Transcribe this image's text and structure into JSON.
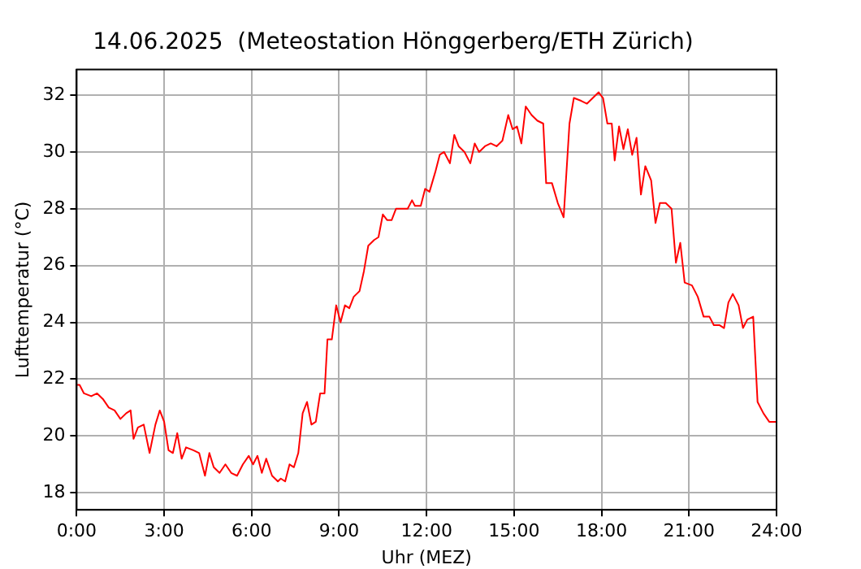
{
  "chart_data": {
    "type": "line",
    "title": "14.06.2025  (Meteostation Hönggerberg/ETH Zürich)",
    "xlabel": "Uhr (MEZ)",
    "ylabel": "Lufttemperatur (°C)",
    "x": [
      0,
      0.1,
      0.25,
      0.5,
      0.7,
      0.9,
      1.1,
      1.3,
      1.5,
      1.7,
      1.85,
      1.95,
      2.1,
      2.3,
      2.5,
      2.7,
      2.85,
      3.0,
      3.15,
      3.3,
      3.45,
      3.6,
      3.75,
      4.0,
      4.2,
      4.4,
      4.55,
      4.7,
      4.9,
      5.1,
      5.3,
      5.5,
      5.7,
      5.9,
      6.05,
      6.2,
      6.35,
      6.5,
      6.7,
      6.9,
      7.0,
      7.15,
      7.3,
      7.45,
      7.6,
      7.75,
      7.9,
      8.05,
      8.2,
      8.35,
      8.5,
      8.6,
      8.75,
      8.9,
      9.05,
      9.2,
      9.35,
      9.5,
      9.7,
      9.85,
      10.0,
      10.2,
      10.35,
      10.5,
      10.65,
      10.8,
      10.95,
      11.1,
      11.35,
      11.5,
      11.6,
      11.8,
      11.95,
      12.1,
      12.3,
      12.45,
      12.6,
      12.8,
      12.95,
      13.1,
      13.3,
      13.5,
      13.65,
      13.8,
      14.0,
      14.2,
      14.4,
      14.6,
      14.8,
      14.95,
      15.1,
      15.25,
      15.4,
      15.6,
      15.8,
      16.0,
      16.1,
      16.3,
      16.5,
      16.7,
      16.9,
      17.05,
      17.3,
      17.5,
      17.7,
      17.9,
      18.05,
      18.2,
      18.35,
      18.45,
      18.6,
      18.75,
      18.9,
      19.05,
      19.2,
      19.35,
      19.5,
      19.7,
      19.85,
      20.0,
      20.2,
      20.4,
      20.55,
      20.7,
      20.85,
      21.1,
      21.3,
      21.5,
      21.7,
      21.85,
      22.05,
      22.2,
      22.35,
      22.5,
      22.7,
      22.85,
      23.0,
      23.2,
      23.35,
      23.55,
      23.75,
      24.0
    ],
    "series": [
      {
        "color": "#ff0000",
        "values": [
          21.8,
          21.8,
          21.5,
          21.4,
          21.5,
          21.3,
          21.0,
          20.9,
          20.6,
          20.8,
          20.9,
          19.9,
          20.3,
          20.4,
          19.4,
          20.4,
          20.9,
          20.5,
          19.5,
          19.4,
          20.1,
          19.2,
          19.6,
          19.5,
          19.4,
          18.6,
          19.4,
          18.9,
          18.7,
          19.0,
          18.7,
          18.6,
          19.0,
          19.3,
          19.0,
          19.3,
          18.7,
          19.2,
          18.6,
          18.4,
          18.5,
          18.4,
          19.0,
          18.9,
          19.4,
          20.8,
          21.2,
          20.4,
          20.5,
          21.5,
          21.5,
          23.4,
          23.4,
          24.6,
          24.0,
          24.6,
          24.5,
          24.9,
          25.1,
          25.8,
          26.7,
          26.9,
          27.0,
          27.8,
          27.6,
          27.6,
          28.0,
          28.0,
          28.0,
          28.3,
          28.1,
          28.1,
          28.7,
          28.6,
          29.3,
          29.9,
          30.0,
          29.6,
          30.6,
          30.2,
          30.0,
          29.6,
          30.3,
          30.0,
          30.2,
          30.3,
          30.2,
          30.4,
          31.3,
          30.8,
          30.9,
          30.3,
          31.6,
          31.3,
          31.1,
          31.0,
          28.9,
          28.9,
          28.2,
          27.7,
          31.0,
          31.9,
          31.8,
          31.7,
          31.9,
          32.1,
          31.9,
          31.0,
          31.0,
          29.7,
          30.9,
          30.1,
          30.8,
          29.9,
          30.5,
          28.5,
          29.5,
          29.0,
          27.5,
          28.2,
          28.2,
          28.0,
          26.1,
          26.8,
          25.4,
          25.3,
          24.9,
          24.2,
          24.2,
          23.9,
          23.9,
          23.8,
          24.7,
          25.0,
          24.6,
          23.8,
          24.1,
          24.2,
          21.2,
          20.8,
          20.5,
          20.5
        ]
      }
    ],
    "xlim": [
      0,
      24
    ],
    "xticks": [
      {
        "value": 0,
        "label": "0:00"
      },
      {
        "value": 3,
        "label": "3:00"
      },
      {
        "value": 6,
        "label": "6:00"
      },
      {
        "value": 9,
        "label": "9:00"
      },
      {
        "value": 12,
        "label": "12:00"
      },
      {
        "value": 15,
        "label": "15:00"
      },
      {
        "value": 18,
        "label": "18:00"
      },
      {
        "value": 21,
        "label": "21:00"
      },
      {
        "value": 24,
        "label": "24:00"
      }
    ],
    "ylim": [
      17.4,
      32.9
    ],
    "yticks": [
      18,
      20,
      22,
      24,
      26,
      28,
      30,
      32
    ],
    "grid": true,
    "marker": "none",
    "line_style": "solid",
    "legend": false
  }
}
